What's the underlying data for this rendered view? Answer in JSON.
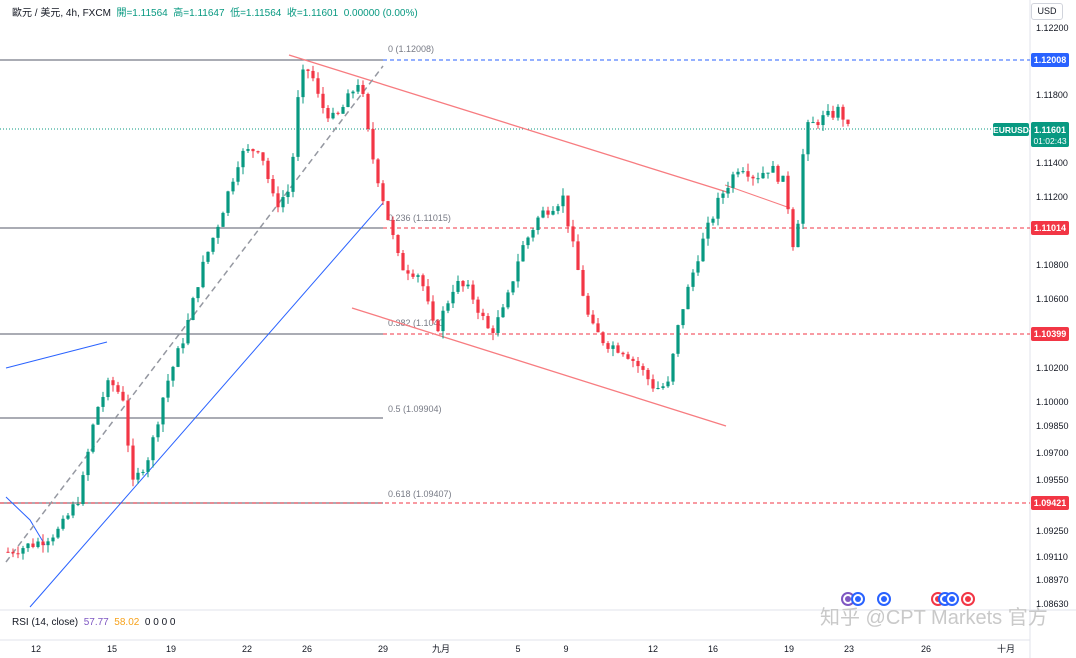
{
  "header": {
    "symbol_text": "歐元 / 美元, 4h, FXCM",
    "open": "開=1.11564",
    "high": "高=1.11647",
    "low": "低=1.11564",
    "close": "收=1.11601",
    "change": "0.00000 (0.00%)"
  },
  "rsi": {
    "label": "RSI (14, close)",
    "value1": "57.77",
    "value2": "58.02",
    "zeros": "0 0 0 0"
  },
  "currency_button": "USD",
  "watermark": "知乎 @CPT Markets 官方",
  "colors": {
    "up": "#089981",
    "down": "#f23645",
    "trend_red": "#f77c80",
    "trend_blue": "#2962ff",
    "fib_gray": "#787b86"
  },
  "chart_data": {
    "type": "candlestick",
    "symbol": "EURUSD",
    "timeframe": "4h",
    "y_axis_ticks": [
      "1.12200",
      "1.11800",
      "1.11400",
      "1.11200",
      "1.10800",
      "1.10600",
      "1.10200",
      "1.10000",
      "1.09850",
      "1.09700",
      "1.09550",
      "1.09250",
      "1.09110",
      "1.08970",
      "1.08630"
    ],
    "x_axis_ticks": [
      "12",
      "15",
      "19",
      "22",
      "26",
      "29",
      "九月",
      "5",
      "9",
      "12",
      "16",
      "19",
      "23",
      "26",
      "十月"
    ],
    "fibonacci": [
      {
        "level": "0",
        "label": "0 (1.12008)",
        "price": 1.12008
      },
      {
        "level": "0.236",
        "label": "0.236 (1.11015)",
        "price": 1.11015
      },
      {
        "level": "0.382",
        "label": "0.382 (1.1040",
        "price": 1.10399
      },
      {
        "level": "0.5",
        "label": "0.5 (1.09904)",
        "price": 1.09904
      },
      {
        "level": "0.618",
        "label": "0.618 (1.09407)",
        "price": 1.09407
      }
    ],
    "price_labels": [
      {
        "text": "1.12008",
        "color": "#2962ff"
      },
      {
        "text": "1.11014",
        "color": "#f23645"
      },
      {
        "text": "1.10399",
        "color": "#f23645"
      },
      {
        "text": "1.09421",
        "color": "#f23645"
      }
    ],
    "current_price": {
      "symbol": "EURUSD",
      "price": "1.11601",
      "countdown": "01:02:43"
    },
    "candles_summary": {
      "last_close": 1.11601,
      "period_high": 1.12008,
      "period_low": 1.0911
    }
  }
}
